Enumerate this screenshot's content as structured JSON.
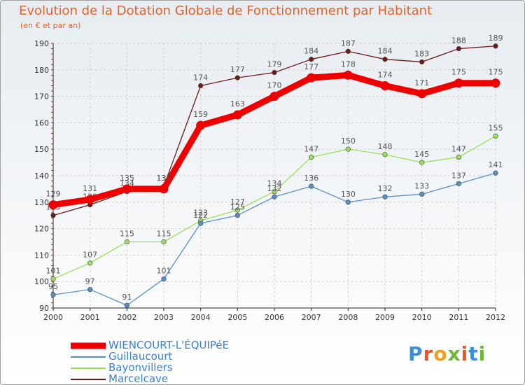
{
  "title": "Evolution de la Dotation Globale de Fonctionnement par Habitant",
  "subtitle": "(en € et par an)",
  "logo_text": "Proxiti",
  "chart_data": {
    "type": "line",
    "title": "Evolution de la Dotation Globale de Fonctionnement par Habitant",
    "subtitle": "(en € et par an)",
    "xlabel": "",
    "ylabel": "",
    "x": [
      "2000",
      "2001",
      "2002",
      "2003",
      "2004",
      "2005",
      "2006",
      "2007",
      "2008",
      "2009",
      "2010",
      "2011",
      "2012"
    ],
    "ylim": [
      90,
      190
    ],
    "yticks": [
      90,
      100,
      110,
      120,
      130,
      140,
      150,
      160,
      170,
      180,
      190
    ],
    "grid": true,
    "legend": "bottom-left",
    "series": [
      {
        "name": "Marcelcave",
        "color": "#6b1a1a",
        "values": [
          125,
          129,
          134,
          136,
          174,
          177,
          179,
          184,
          187,
          184,
          183,
          188,
          189
        ]
      },
      {
        "name": "Bayonvillers",
        "color": "#99e05a",
        "values": [
          101,
          107,
          115,
          115,
          123,
          127,
          134,
          147,
          150,
          148,
          145,
          147,
          155
        ]
      },
      {
        "name": "Guillaucourt",
        "color": "#5a8fc6",
        "values": [
          95,
          97,
          91,
          101,
          122,
          125,
          132,
          136,
          130,
          132,
          133,
          137,
          141
        ]
      },
      {
        "name": "WIENCOURT-L'ÉQUIPéE",
        "color": "#ee0000",
        "values": [
          129,
          131,
          135,
          135,
          159,
          163,
          170,
          177,
          178,
          174,
          171,
          175,
          175
        ]
      }
    ],
    "legend_order": [
      "WIENCOURT-L'ÉQUIPéE",
      "Guillaucourt",
      "Bayonvillers",
      "Marcelcave"
    ]
  }
}
